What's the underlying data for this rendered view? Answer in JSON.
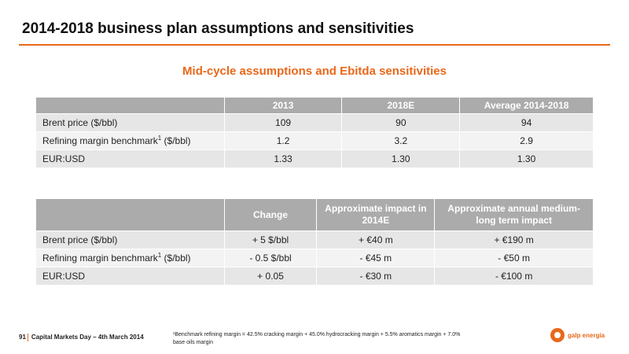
{
  "title": "2014-2018 business plan assumptions and sensitivities",
  "subtitle": "Mid-cycle assumptions and Ebitda sensitivities",
  "table1": {
    "headers": [
      "",
      "2013",
      "2018E",
      "Average 2014-2018"
    ],
    "rows": [
      {
        "label": "Brent price ($/bbl)",
        "sup": "",
        "unit": "",
        "values": [
          "109",
          "90",
          "94"
        ]
      },
      {
        "label": "Refining margin benchmark",
        "sup": "1",
        "unit": " ($/bbl)",
        "values": [
          "1.2",
          "3.2",
          "2.9"
        ]
      },
      {
        "label": "EUR:USD",
        "sup": "",
        "unit": "",
        "values": [
          "1.33",
          "1.30",
          "1.30"
        ]
      }
    ]
  },
  "table2": {
    "headers": [
      "",
      "Change",
      "Approximate impact in 2014E",
      "Approximate annual medium-long term impact"
    ],
    "rows": [
      {
        "label": "Brent price ($/bbl)",
        "sup": "",
        "unit": "",
        "values": [
          "+ 5 $/bbl",
          "+ €40 m",
          "+ €190 m"
        ]
      },
      {
        "label": "Refining margin benchmark",
        "sup": "1",
        "unit": " ($/bbl)",
        "values": [
          "- 0.5 $/bbl",
          "- €45 m",
          "- €50 m"
        ]
      },
      {
        "label": "EUR:USD",
        "sup": "",
        "unit": "",
        "values": [
          "+ 0.05",
          "- €30 m",
          "- €100 m"
        ]
      }
    ]
  },
  "footer": {
    "page_number": "91",
    "event": "Capital Markets Day – 4th March 2014",
    "footnote": "¹Benchmark refining margin = 42.5% cracking margin + 45.0% hydrocracking margin + 5.5% aromatics margin + 7.0% base oils margin",
    "logo_text": "galp energia"
  },
  "colors": {
    "accent": "#e8681a",
    "header_bg": "#ababab",
    "row_odd": "#e6e6e6",
    "row_even": "#f3f3f3"
  }
}
